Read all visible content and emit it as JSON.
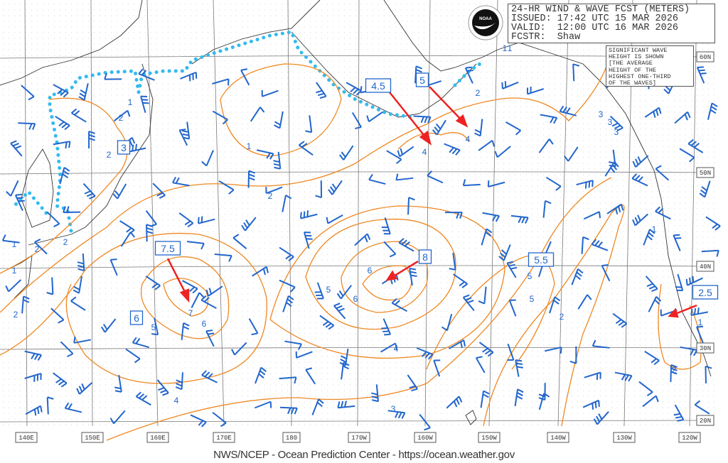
{
  "header": {
    "lines": [
      "24-HR WIND & WAVE FCST (METERS)",
      "ISSUED: 17:42 UTC 15 MAR 2026",
      "VALID:  12:00 UTC 16 MAR 2026",
      "FCSTR:  Shaw"
    ]
  },
  "logo": {
    "text": "NOAA"
  },
  "note": {
    "lines": [
      "SIGNIFICANT WAVE",
      "HEIGHT IS SHOWN",
      "[THE AVERAGE",
      "HEIGHT OF THE",
      "HIGHEST ONE-THIRD",
      "OF THE WAVES]"
    ]
  },
  "lat_labels": [
    "60N",
    "50N",
    "40N",
    "30N",
    "20N"
  ],
  "lon_labels": [
    "140E",
    "150E",
    "160E",
    "170E",
    "180",
    "170W",
    "160W",
    "150W",
    "140W",
    "130W",
    "120W"
  ],
  "max_labels": [
    "4.5",
    "5",
    "3",
    "7.5",
    "6",
    "8",
    "5.5",
    "2.5"
  ],
  "contour_labels": [
    "1",
    "2",
    "2",
    "1",
    "2",
    "4",
    "4",
    "3",
    "3",
    "3",
    "2",
    "1",
    "1",
    "2",
    "1",
    "1",
    "2",
    "5",
    "6",
    "7",
    "6",
    "5",
    "4",
    "5",
    "6",
    "4",
    "3",
    "5",
    "2",
    "2",
    "1",
    "1",
    "2"
  ],
  "footer": "NWS/NCEP - Ocean Prediction Center - https://ocean.weather.gov",
  "colors": {
    "wind": "#2266cc",
    "waves": "#ee8822",
    "ice": "#33bbee",
    "arrows": "#ee2222",
    "coast": "#333333"
  }
}
